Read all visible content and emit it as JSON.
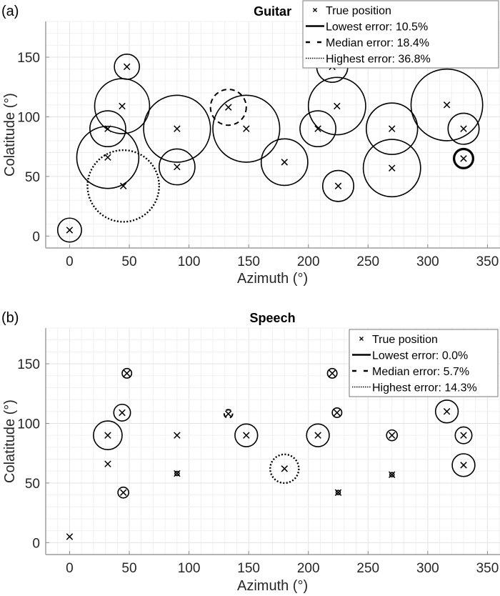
{
  "chart_data": [
    {
      "type": "scatter",
      "panel_label": "(a)",
      "title": "Guitar",
      "xlabel": "Azimuth (°)",
      "ylabel": "Colatitude (°)",
      "xlim": [
        -20,
        360
      ],
      "ylim": [
        -10,
        180
      ],
      "xticks": [
        0,
        50,
        100,
        150,
        200,
        250,
        300,
        350
      ],
      "yticks": [
        0,
        50,
        100,
        150
      ],
      "grid": true,
      "minor_grid": true,
      "legend_position": "top-right",
      "legend": [
        {
          "label": "True position",
          "style": "marker-x"
        },
        {
          "label": "Lowest error: 10.5%",
          "style": "solid"
        },
        {
          "label": "Median error: 18.4%",
          "style": "dashed"
        },
        {
          "label": "Highest error: 36.8%",
          "style": "dotted"
        }
      ],
      "points": [
        {
          "azimuth": 0,
          "colatitude": 5,
          "error_radius": 10,
          "style": "normal"
        },
        {
          "azimuth": 48,
          "colatitude": 142,
          "error_radius": 10.5,
          "style": "normal"
        },
        {
          "azimuth": 44,
          "colatitude": 109,
          "error_radius": 23,
          "style": "normal"
        },
        {
          "azimuth": 32,
          "colatitude": 90,
          "error_radius": 15,
          "style": "normal"
        },
        {
          "azimuth": 32,
          "colatitude": 66,
          "error_radius": 26,
          "style": "normal"
        },
        {
          "azimuth": 45,
          "colatitude": 42,
          "error_radius": 30,
          "style": "highest"
        },
        {
          "azimuth": 90,
          "colatitude": 90,
          "error_radius": 28,
          "style": "normal"
        },
        {
          "azimuth": 90,
          "colatitude": 58,
          "error_radius": 15,
          "style": "normal"
        },
        {
          "azimuth": 133,
          "colatitude": 108,
          "error_radius": 15,
          "style": "median"
        },
        {
          "azimuth": 148,
          "colatitude": 90,
          "error_radius": 28,
          "style": "normal"
        },
        {
          "azimuth": 180,
          "colatitude": 62,
          "error_radius": 19.5,
          "style": "normal"
        },
        {
          "azimuth": 208,
          "colatitude": 90,
          "error_radius": 15,
          "style": "normal"
        },
        {
          "azimuth": 220,
          "colatitude": 142,
          "error_radius": 13,
          "style": "normal"
        },
        {
          "azimuth": 224,
          "colatitude": 109,
          "error_radius": 24,
          "style": "normal"
        },
        {
          "azimuth": 225,
          "colatitude": 42,
          "error_radius": 13,
          "style": "normal"
        },
        {
          "azimuth": 270,
          "colatitude": 90,
          "error_radius": 21.5,
          "style": "normal"
        },
        {
          "azimuth": 270,
          "colatitude": 57,
          "error_radius": 24,
          "style": "normal"
        },
        {
          "azimuth": 316,
          "colatitude": 110,
          "error_radius": 30,
          "style": "normal"
        },
        {
          "azimuth": 330,
          "colatitude": 90,
          "error_radius": 13,
          "style": "normal"
        },
        {
          "azimuth": 330,
          "colatitude": 65,
          "error_radius": 8,
          "style": "lowest"
        }
      ]
    },
    {
      "type": "scatter",
      "panel_label": "(b)",
      "title": "Speech",
      "xlabel": "Azimuth (°)",
      "ylabel": "Colatitude (°)",
      "xlim": [
        -20,
        360
      ],
      "ylim": [
        -10,
        180
      ],
      "xticks": [
        0,
        50,
        100,
        150,
        200,
        250,
        300,
        350
      ],
      "yticks": [
        0,
        50,
        100,
        150
      ],
      "grid": true,
      "minor_grid": true,
      "legend_position": "top-right",
      "legend": [
        {
          "label": "True position",
          "style": "marker-x"
        },
        {
          "label": "Lowest error: 0.0%",
          "style": "solid"
        },
        {
          "label": "Median error: 5.7%",
          "style": "dashed"
        },
        {
          "label": "Highest error: 14.3%",
          "style": "dotted"
        }
      ],
      "points": [
        {
          "azimuth": 0,
          "colatitude": 5,
          "error_radius": 0,
          "style": "lowest"
        },
        {
          "azimuth": 48,
          "colatitude": 142,
          "error_radius": 4,
          "style": "normal"
        },
        {
          "azimuth": 44,
          "colatitude": 109,
          "error_radius": 7,
          "style": "normal"
        },
        {
          "azimuth": 32,
          "colatitude": 90,
          "error_radius": 12,
          "style": "normal"
        },
        {
          "azimuth": 32,
          "colatitude": 66,
          "error_radius": 0,
          "style": "normal"
        },
        {
          "azimuth": 45,
          "colatitude": 42,
          "error_radius": 4.5,
          "style": "normal"
        },
        {
          "azimuth": 90,
          "colatitude": 90,
          "error_radius": 0,
          "style": "normal"
        },
        {
          "azimuth": 90,
          "colatitude": 58,
          "error_radius": 1.8,
          "style": "normal"
        },
        {
          "azimuth": 133,
          "colatitude": 108,
          "error_radius": 3.5,
          "style": "median"
        },
        {
          "azimuth": 148,
          "colatitude": 90,
          "error_radius": 9.5,
          "style": "normal"
        },
        {
          "azimuth": 180,
          "colatitude": 62,
          "error_radius": 12,
          "style": "highest"
        },
        {
          "azimuth": 208,
          "colatitude": 90,
          "error_radius": 9.5,
          "style": "normal"
        },
        {
          "azimuth": 220,
          "colatitude": 142,
          "error_radius": 4,
          "style": "normal"
        },
        {
          "azimuth": 224,
          "colatitude": 109,
          "error_radius": 4,
          "style": "normal"
        },
        {
          "azimuth": 225,
          "colatitude": 42,
          "error_radius": 1.8,
          "style": "normal"
        },
        {
          "azimuth": 270,
          "colatitude": 90,
          "error_radius": 4.5,
          "style": "normal"
        },
        {
          "azimuth": 270,
          "colatitude": 57,
          "error_radius": 1.8,
          "style": "normal"
        },
        {
          "azimuth": 316,
          "colatitude": 110,
          "error_radius": 9.5,
          "style": "normal"
        },
        {
          "azimuth": 330,
          "colatitude": 90,
          "error_radius": 7,
          "style": "normal"
        },
        {
          "azimuth": 330,
          "colatitude": 65,
          "error_radius": 9.5,
          "style": "normal"
        }
      ]
    }
  ]
}
